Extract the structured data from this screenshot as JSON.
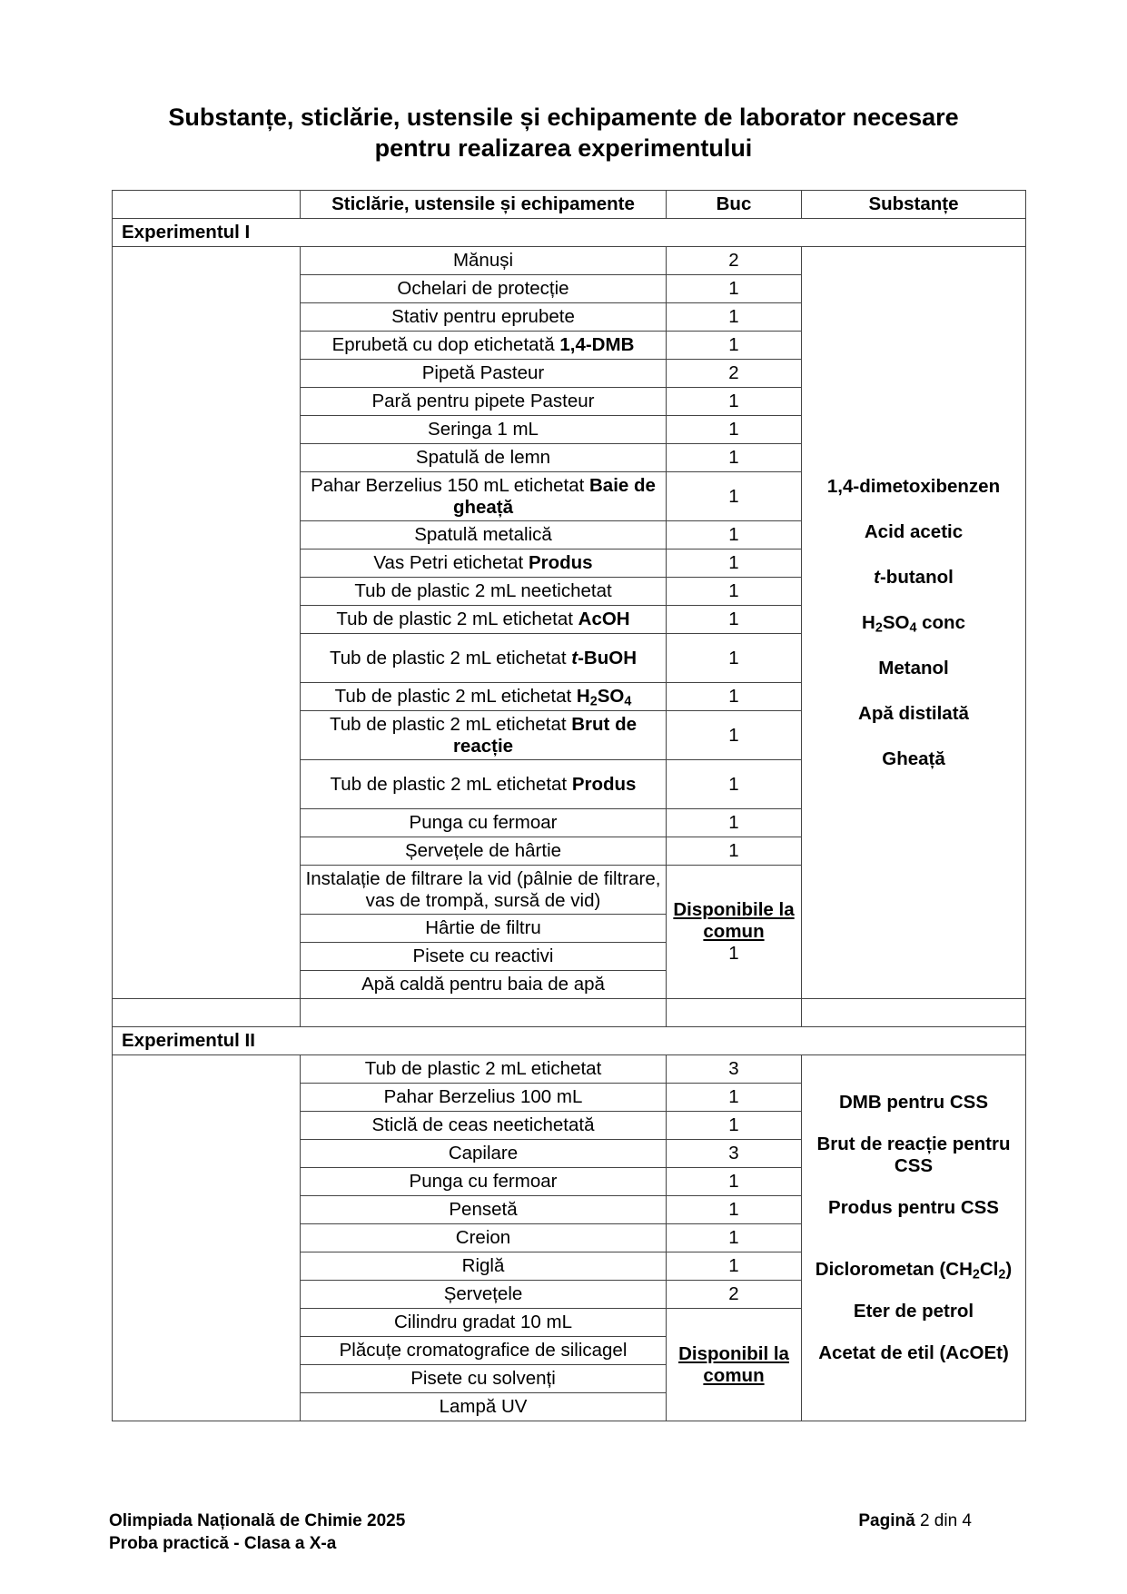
{
  "title_line1": "Substanțe, sticlărie, ustensile și echipamente de laborator necesare",
  "title_line2": "pentru realizarea experimentului",
  "headers": [
    "",
    "Sticlărie, ustensile și echipamente",
    "Buc",
    "Substanțe"
  ],
  "experiments": [
    {
      "label": "Experimentul I",
      "items": [
        {
          "parts": [
            [
              "Mănuși",
              ""
            ]
          ],
          "qty": "2"
        },
        {
          "parts": [
            [
              "Ochelari de protecție",
              ""
            ]
          ],
          "qty": "1"
        },
        {
          "parts": [
            [
              "Stativ pentru eprubete",
              ""
            ]
          ],
          "qty": "1"
        },
        {
          "parts": [
            [
              "Eprubetă cu dop etichetată ",
              ""
            ],
            [
              "1,4-DMB",
              "b"
            ]
          ],
          "qty": "1"
        },
        {
          "parts": [
            [
              "Pipetă Pasteur",
              ""
            ]
          ],
          "qty": "2"
        },
        {
          "parts": [
            [
              "Pară pentru pipete Pasteur",
              ""
            ]
          ],
          "qty": "1"
        },
        {
          "parts": [
            [
              "Seringa 1 mL",
              ""
            ]
          ],
          "qty": "1"
        },
        {
          "parts": [
            [
              "Spatulă de lemn",
              ""
            ]
          ],
          "qty": "1"
        },
        {
          "parts": [
            [
              "Pahar Berzelius 150 mL etichetat ",
              ""
            ],
            [
              "Baie de gheață",
              "b"
            ]
          ],
          "qty": "1",
          "lines": 2
        },
        {
          "parts": [
            [
              "Spatulă metalică",
              ""
            ]
          ],
          "qty": "1"
        },
        {
          "parts": [
            [
              "Vas Petri etichetat ",
              ""
            ],
            [
              "Produs",
              "b"
            ]
          ],
          "qty": "1"
        },
        {
          "parts": [
            [
              "Tub de plastic 2 mL neetichetat",
              ""
            ]
          ],
          "qty": "1"
        },
        {
          "parts": [
            [
              "Tub de plastic 2 mL etichetat ",
              ""
            ],
            [
              "AcOH",
              "b"
            ]
          ],
          "qty": "1"
        },
        {
          "parts": [
            [
              "Tub de plastic 2 mL etichetat ",
              ""
            ],
            [
              "t",
              "bi"
            ],
            [
              "-BuOH",
              "b"
            ]
          ],
          "qty": "1",
          "lines": 2
        },
        {
          "parts": [
            [
              "Tub de plastic 2 mL etichetat ",
              ""
            ],
            [
              "H",
              "b"
            ],
            [
              "2",
              "bsub"
            ],
            [
              "SO",
              "b"
            ],
            [
              "4",
              "bsub"
            ]
          ],
          "qty": "1"
        },
        {
          "parts": [
            [
              "Tub de plastic 2 mL etichetat ",
              ""
            ],
            [
              "Brut de reacție",
              "b"
            ]
          ],
          "qty": "1",
          "lines": 2
        },
        {
          "parts": [
            [
              "Tub de plastic 2 mL etichetat ",
              ""
            ],
            [
              "Produs",
              "b"
            ]
          ],
          "qty": "1",
          "lines": 2
        },
        {
          "parts": [
            [
              "Punga cu fermoar",
              ""
            ]
          ],
          "qty": "1"
        },
        {
          "parts": [
            [
              "Șervețele de hârtie",
              ""
            ]
          ],
          "qty": "1"
        },
        {
          "parts": [
            [
              "Instalație de filtrare la vid (pâlnie de filtrare, vas de trompă, sursă de vid)",
              ""
            ]
          ],
          "lines": 2
        },
        {
          "parts": [
            [
              "Hârtie de filtru",
              ""
            ]
          ]
        },
        {
          "parts": [
            [
              "Pisete cu reactivi",
              ""
            ]
          ]
        },
        {
          "parts": [
            [
              "Apă caldă pentru baia de apă",
              ""
            ]
          ]
        }
      ],
      "shared_from": 19,
      "shared_label": "Disponibile la comun",
      "shared_qty": "1",
      "trailing_empty_row": true,
      "substances": [
        [
          [
            "1,4-dimetoxibenzen",
            "b"
          ]
        ],
        [
          [
            "Acid acetic",
            "b"
          ]
        ],
        [
          [
            "t",
            "bi"
          ],
          [
            "-butanol",
            "b"
          ]
        ],
        [
          [
            "H",
            "b"
          ],
          [
            "2",
            "bsub"
          ],
          [
            "SO",
            "b"
          ],
          [
            "4",
            "bsub"
          ],
          [
            " conc",
            "b"
          ]
        ],
        [
          [
            "Metanol",
            "b"
          ]
        ],
        [
          [
            "Apă distilată",
            "b"
          ]
        ],
        [
          [
            "Gheață",
            "b"
          ]
        ]
      ]
    },
    {
      "label": "Experimentul II",
      "items": [
        {
          "parts": [
            [
              "Tub de plastic 2 mL etichetat",
              ""
            ]
          ],
          "qty": "3"
        },
        {
          "parts": [
            [
              "Pahar Berzelius 100 mL",
              ""
            ]
          ],
          "qty": "1"
        },
        {
          "parts": [
            [
              "Sticlă de ceas neetichetată",
              ""
            ]
          ],
          "qty": "1"
        },
        {
          "parts": [
            [
              "Capilare",
              ""
            ]
          ],
          "qty": "3"
        },
        {
          "parts": [
            [
              "Punga cu fermoar",
              ""
            ]
          ],
          "qty": "1"
        },
        {
          "parts": [
            [
              "Pensetă",
              ""
            ]
          ],
          "qty": "1"
        },
        {
          "parts": [
            [
              "Creion",
              ""
            ]
          ],
          "qty": "1"
        },
        {
          "parts": [
            [
              "Riglă",
              ""
            ]
          ],
          "qty": "1"
        },
        {
          "parts": [
            [
              "Șervețele",
              ""
            ]
          ],
          "qty": "2"
        },
        {
          "parts": [
            [
              "Cilindru gradat 10 mL",
              ""
            ]
          ]
        },
        {
          "parts": [
            [
              "Plăcuțe cromatografice de silicagel",
              ""
            ]
          ]
        },
        {
          "parts": [
            [
              "Pisete cu solvenți",
              ""
            ]
          ]
        },
        {
          "parts": [
            [
              "Lampă UV",
              ""
            ]
          ]
        }
      ],
      "shared_from": 9,
      "shared_label": "Disponibil la comun",
      "shared_qty": "",
      "trailing_empty_row": false,
      "substances": [
        [
          [
            "DMB pentru CSS",
            "b"
          ]
        ],
        [
          [
            "Brut de reacție pentru CSS",
            "b"
          ]
        ],
        [
          [
            "Produs pentru CSS",
            "b"
          ]
        ],
        [
          [
            "Diclorometan (CH",
            "b"
          ],
          [
            "2",
            "bsub"
          ],
          [
            "Cl",
            "b"
          ],
          [
            "2",
            "bsub"
          ],
          [
            ")",
            "b"
          ]
        ],
        [
          [
            "Eter de petrol",
            "b"
          ]
        ],
        [
          [
            "Acetat de etil (AcOEt)",
            "b"
          ]
        ]
      ]
    }
  ],
  "footer": {
    "left_line1": "Olimpiada Națională de Chimie 2025",
    "left_line2": "Proba practică - Clasa a X-a",
    "page_prefix": "Pagină",
    "page_rest": "2 din 4"
  }
}
